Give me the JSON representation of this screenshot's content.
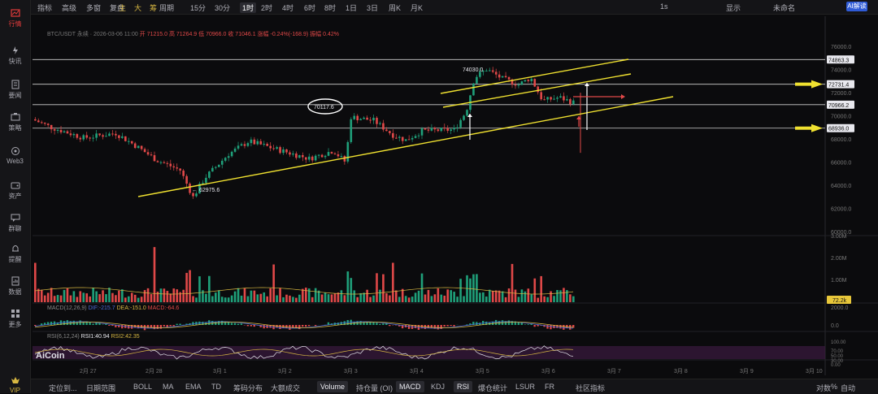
{
  "sidebar": {
    "items": [
      {
        "label": "行情",
        "icon": "chart-icon"
      },
      {
        "label": "快讯",
        "icon": "flash-icon"
      },
      {
        "label": "要闻",
        "icon": "news-icon"
      },
      {
        "label": "策略",
        "icon": "strategy-icon"
      },
      {
        "label": "Web3",
        "icon": "web3-icon"
      },
      {
        "label": "资产",
        "icon": "wallet-icon"
      },
      {
        "label": "群聊",
        "icon": "chat-icon"
      },
      {
        "label": "提醒",
        "icon": "bell-icon"
      },
      {
        "label": "数据",
        "icon": "data-icon"
      },
      {
        "label": "更多",
        "icon": "more-icon"
      },
      {
        "label": "VIP",
        "icon": "vip-icon"
      }
    ]
  },
  "toolbar": {
    "indicator": "指标",
    "advanced": "高级",
    "multi": "多窗",
    "review": "复盘",
    "zhu": "主",
    "da": "大",
    "chou": "筹",
    "period": "周期",
    "periods": [
      "15分",
      "30分",
      "1时",
      "2时",
      "4时",
      "6时",
      "8时",
      "1日",
      "3日",
      "周K",
      "月K"
    ],
    "selected_period": "1时",
    "interval_right": "1s",
    "display": "显示",
    "user": "未命名",
    "ai": "AI解读"
  },
  "info": {
    "symbol": "BTC/USDT 永续 · 2026-03-06 11:00",
    "open": "开 71215.0",
    "high": "高 71264.9",
    "low": "低 70966.0",
    "close": "收 71046.1",
    "change": "涨幅 -0.24%(-168.9)",
    "amplitude": "振幅 0.42%"
  },
  "price_axis": {
    "ticks": [
      "76000.0",
      "74000.0",
      "72000.0",
      "70000.0",
      "68000.0",
      "66000.0",
      "64000.0",
      "62000.0",
      "60000.0"
    ],
    "boxes": [
      "74863.3",
      "72731.4",
      "70966.2",
      "68936.0"
    ]
  },
  "annotations": {
    "high_label": "74030.0",
    "low_label": "← 62975.6",
    "circle_label": "70117.6"
  },
  "volume_axis": {
    "ticks": [
      "3.00M",
      "2.00M",
      "1.00M"
    ],
    "current": "72.2k"
  },
  "macd": {
    "label": "MACD(12,26,9)",
    "dif": "DIF:-215.7",
    "dea": "DEA:-151.0",
    "macd": "MACD:-64.6",
    "ticks": [
      "2000.0",
      "0.0"
    ]
  },
  "rsi": {
    "label": "RSI(6,12,24)",
    "rsi1": "RSI1:40.94",
    "rsi2": "RSI2:42.35",
    "ticks": [
      "100.00",
      "70.00",
      "50.00",
      "30.00",
      "0.00"
    ]
  },
  "time_axis": [
    "2月 27",
    "2月 28",
    "3月 1",
    "3月 2",
    "3月 3",
    "3月 4",
    "3月 5",
    "3月 6",
    "3月 7",
    "3月 8",
    "3月 9",
    "3月 10"
  ],
  "logo_text": "AiCoin",
  "bottom": {
    "drawing": "定位到...",
    "date_range": "日期范围",
    "main_inds": [
      "BOLL",
      "MA",
      "EMA",
      "TD",
      "筹码分布",
      "大额成交"
    ],
    "sub_inds": [
      "Volume",
      "持仓量 (OI)",
      "MACD",
      "KDJ",
      "RSI",
      "爆仓统计",
      "LSUR",
      "FR"
    ],
    "community": "社区指标",
    "log": "对数",
    "pct": "%",
    "auto": "自动"
  },
  "chart_data": {
    "type": "candlestick",
    "y_range": [
      60000,
      76500
    ],
    "support_lines": [
      74863.3,
      72731.4,
      70966.2,
      68936.0
    ],
    "markers": {
      "high": 74030.0,
      "low": 62975.6,
      "circled": 70117.6
    }
  },
  "colors": {
    "up": "#1fa07a",
    "down": "#e04848",
    "accent_yellow": "#f0e130",
    "bg": "#0b0b0d"
  }
}
